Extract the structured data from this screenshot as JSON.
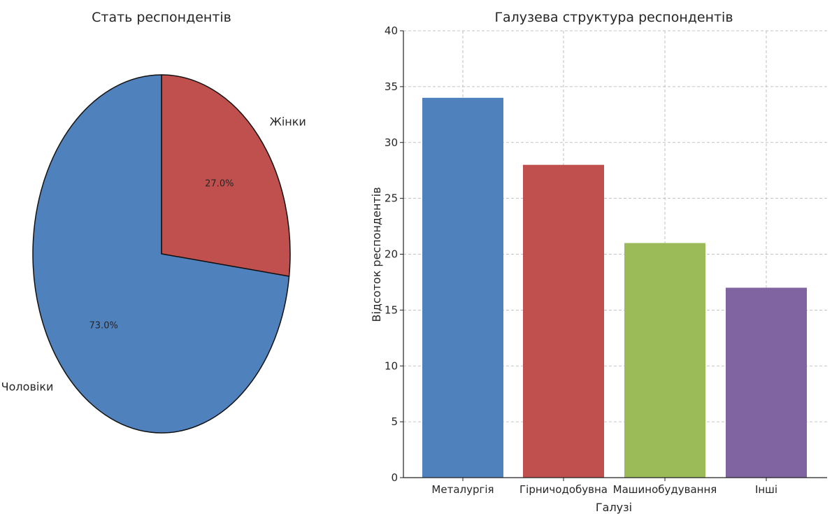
{
  "chart_data": [
    {
      "type": "pie",
      "title": "Стать респондентів",
      "slices": [
        {
          "label": "Жінки",
          "value": 27.0,
          "pct_label": "27.0%",
          "color": "#C0504D"
        },
        {
          "label": "Чоловіки",
          "value": 73.0,
          "pct_label": "73.0%",
          "color": "#4F81BD"
        }
      ]
    },
    {
      "type": "bar",
      "title": "Галузева структура респондентів",
      "xlabel": "Галузі",
      "ylabel": "Відсоток респондентів",
      "categories": [
        "Металургія",
        "Гірничодобувна",
        "Машинобудування",
        "Інші"
      ],
      "values": [
        34,
        28,
        21,
        17
      ],
      "colors": [
        "#4F81BD",
        "#C0504D",
        "#9BBB59",
        "#8064A2"
      ],
      "ylim": [
        0,
        40
      ],
      "yticks": [
        0,
        5,
        10,
        15,
        20,
        25,
        30,
        35,
        40
      ],
      "grid": true
    }
  ]
}
